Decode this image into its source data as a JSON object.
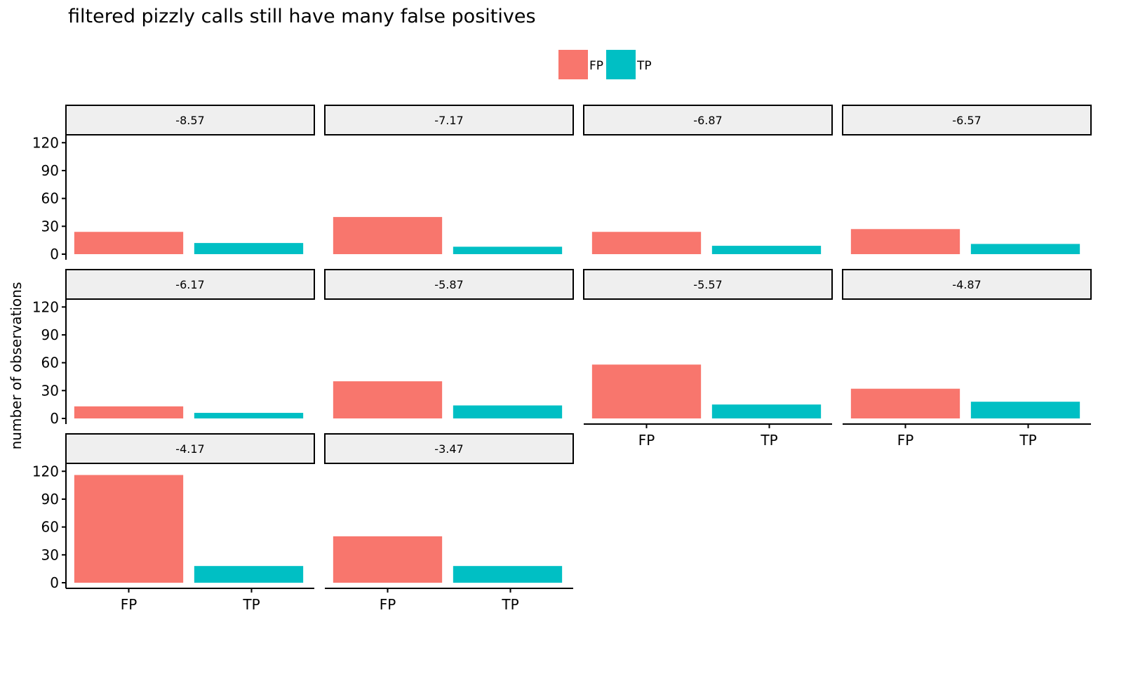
{
  "title": "filtered pizzly calls still have many false positives",
  "chart_data": {
    "type": "bar",
    "title": "filtered pizzly calls still have many false positives",
    "xlabel": "",
    "ylabel": "number of observations",
    "ylim": [
      0,
      127
    ],
    "yticks": [
      0,
      30,
      60,
      90,
      120
    ],
    "categories": [
      "FP",
      "TP"
    ],
    "colors": {
      "FP": "#F8766D",
      "TP": "#00BFC4"
    },
    "legend": {
      "position": "top",
      "entries": [
        "FP",
        "TP"
      ]
    },
    "grid": false,
    "facets": [
      {
        "label": "-8.57",
        "values": [
          24,
          12
        ]
      },
      {
        "label": "-7.17",
        "values": [
          40,
          8
        ]
      },
      {
        "label": "-6.87",
        "values": [
          24,
          9
        ]
      },
      {
        "label": "-6.57",
        "values": [
          27,
          11
        ]
      },
      {
        "label": "-6.17",
        "values": [
          13,
          6
        ]
      },
      {
        "label": "-5.87",
        "values": [
          40,
          14
        ]
      },
      {
        "label": "-5.57",
        "values": [
          58,
          15
        ]
      },
      {
        "label": "-4.87",
        "values": [
          32,
          18
        ]
      },
      {
        "label": "-4.17",
        "values": [
          116,
          18
        ]
      },
      {
        "label": "-3.47",
        "values": [
          50,
          18
        ]
      }
    ]
  }
}
